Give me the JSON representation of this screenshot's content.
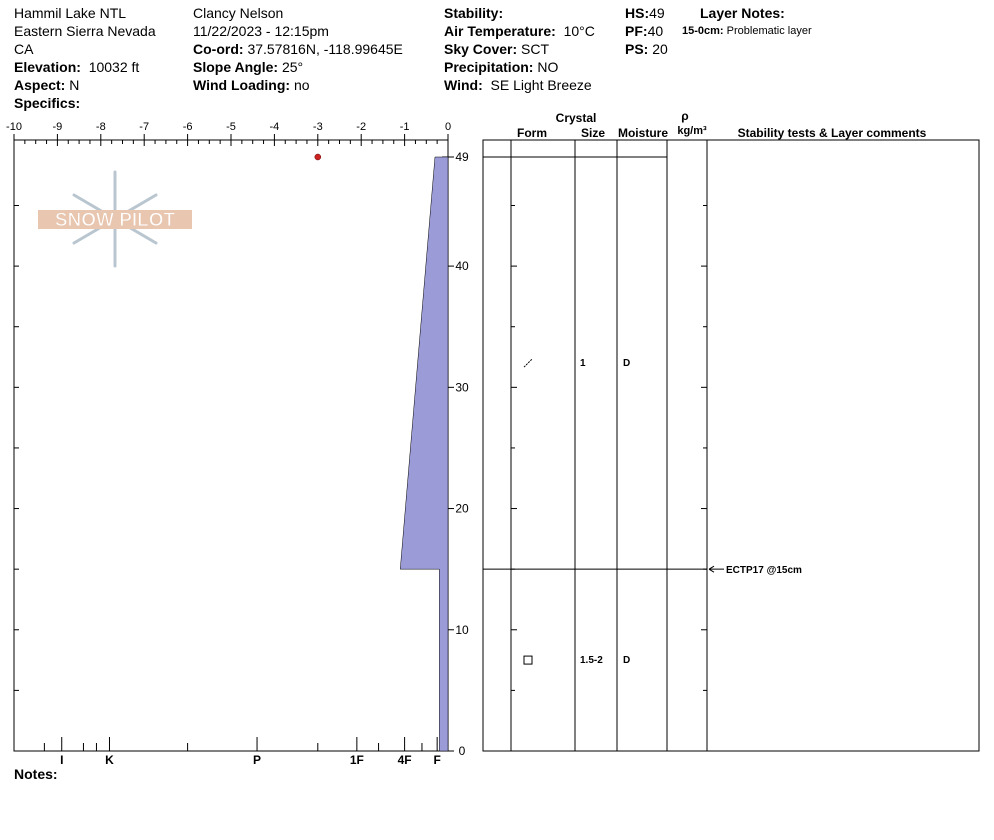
{
  "site": {
    "name": "Hammil Lake NTL",
    "range": "Eastern Sierra Nevada",
    "state": "CA",
    "elevation_label": "Elevation:",
    "elevation": "10032 ft",
    "aspect_label": "Aspect:",
    "aspect": "N",
    "specifics_label": "Specifics:"
  },
  "observer": {
    "name": "Clancy Nelson",
    "datetime": "11/22/2023 - 12:15pm",
    "coord_label": "Co-ord:",
    "coord": "37.57816N, -118.99645E",
    "slope_label": "Slope Angle:",
    "slope": "25°",
    "wind_loading_label": "Wind Loading:",
    "wind_loading": "no"
  },
  "conditions": {
    "stability_label": "Stability:",
    "stability": "",
    "air_temp_label": "Air Temperature:",
    "air_temp": "10°C",
    "sky_label": "Sky Cover:",
    "sky": "SCT",
    "precip_label": "Precipitation:",
    "precip": "NO",
    "wind_label": "Wind:",
    "wind": "SE Light Breeze"
  },
  "depths": {
    "hs_label": "HS:",
    "hs": "49",
    "pf_label": "PF:",
    "pf": "40",
    "ps_label": "PS:",
    "ps": "20"
  },
  "layer_notes": {
    "title": "Layer Notes:",
    "range": "15-0cm:",
    "text": "Problematic layer"
  },
  "logo": {
    "text": "SNOW PILOT"
  },
  "notes_label": "Notes:",
  "table_headers": {
    "crystal": "Crystal",
    "form": "Form",
    "size": "Size",
    "moisture": "Moisture",
    "rho": "ρ",
    "density_unit": "kg/m³",
    "comments": "Stability tests & Layer comments"
  },
  "chart_data": {
    "type": "snow-profile",
    "temperature_axis": {
      "ticks": [
        -10,
        -9,
        -8,
        -7,
        -6,
        -5,
        -4,
        -3,
        -2,
        -1,
        0
      ],
      "range": [
        -10,
        0
      ]
    },
    "height_axis": {
      "ticks": [
        0,
        10,
        20,
        30,
        40,
        49
      ],
      "range": [
        0,
        49
      ],
      "unit": "cm"
    },
    "hardness_labels": [
      {
        "label": "I",
        "temp": -8.9
      },
      {
        "label": "K",
        "temp": -7.8
      },
      {
        "label": "P",
        "temp": -4.4
      },
      {
        "label": "1F",
        "temp": -2.1
      },
      {
        "label": "4F",
        "temp": -1.0
      },
      {
        "label": "F",
        "temp": -0.25
      }
    ],
    "temperature_points": [
      {
        "temp": -3,
        "height": 49
      }
    ],
    "hardness_profile": [
      {
        "height": 49,
        "temp": -0.3
      },
      {
        "height": 15,
        "temp": -1.1
      },
      {
        "height": 15,
        "temp": -0.2
      },
      {
        "height": 0,
        "temp": -0.2
      }
    ],
    "layer_boundaries": [
      49,
      15,
      0
    ],
    "layers": [
      {
        "form": "decomposing",
        "size": "1",
        "moisture": "D",
        "mid_height": 32
      },
      {
        "form": "faceted",
        "size": "1.5-2",
        "moisture": "D",
        "mid_height": 7.5
      }
    ],
    "tests": [
      {
        "label": "ECTP17 @15cm",
        "height": 15
      }
    ],
    "colors": {
      "profile": "#9b9bd8",
      "temp_point": "#cc2222",
      "logo": "#e8c6b0",
      "flake": "#b9c6d0"
    }
  }
}
